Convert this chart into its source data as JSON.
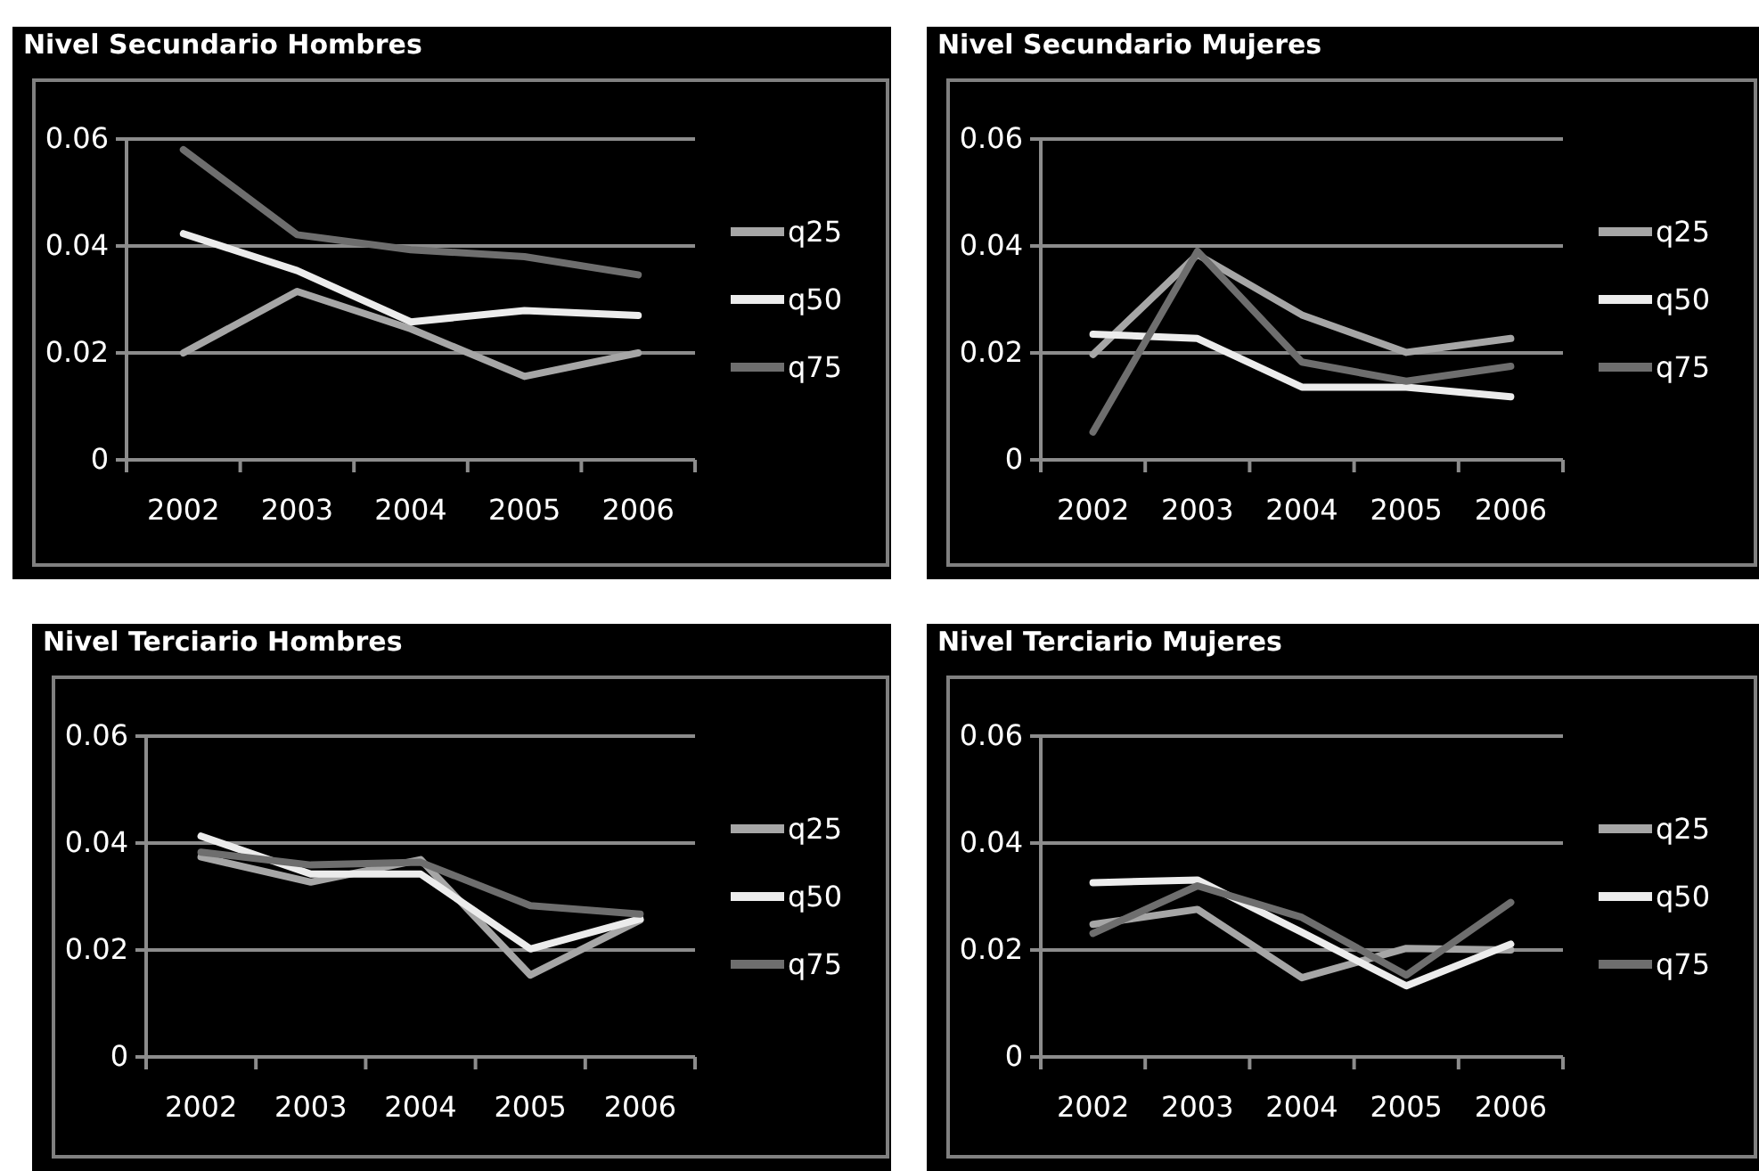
{
  "chart_data": [
    {
      "type": "line",
      "title": "Nivel Secundario Hombres",
      "categories": [
        "2002",
        "2003",
        "2004",
        "2005",
        "2006"
      ],
      "ylim": [
        0,
        0.06
      ],
      "yticks": [
        0,
        0.02,
        0.04,
        0.06
      ],
      "grid": "y",
      "legend": "right",
      "series": [
        {
          "name": "q25",
          "color": "#a6a6a6",
          "values": [
            0.02,
            0.0315,
            0.0245,
            0.0156,
            0.02
          ]
        },
        {
          "name": "q50",
          "color": "#ececec",
          "values": [
            0.0423,
            0.0354,
            0.0258,
            0.0279,
            0.027
          ]
        },
        {
          "name": "q75",
          "color": "#6e6e6e",
          "values": [
            0.058,
            0.0421,
            0.0393,
            0.038,
            0.0346
          ]
        }
      ]
    },
    {
      "type": "line",
      "title": "Nivel Secundario Mujeres",
      "categories": [
        "2002",
        "2003",
        "2004",
        "2005",
        "2006"
      ],
      "ylim": [
        0,
        0.06
      ],
      "yticks": [
        0,
        0.02,
        0.04,
        0.06
      ],
      "grid": "y",
      "legend": "right",
      "series": [
        {
          "name": "q25",
          "color": "#a6a6a6",
          "values": [
            0.0197,
            0.0384,
            0.0271,
            0.0201,
            0.0227
          ]
        },
        {
          "name": "q50",
          "color": "#ececec",
          "values": [
            0.0235,
            0.0227,
            0.0136,
            0.0136,
            0.0118
          ]
        },
        {
          "name": "q75",
          "color": "#6e6e6e",
          "values": [
            0.0052,
            0.039,
            0.0183,
            0.0147,
            0.0175
          ]
        }
      ]
    },
    {
      "type": "line",
      "title": "Nivel Terciario Hombres",
      "categories": [
        "2002",
        "2003",
        "2004",
        "2005",
        "2006"
      ],
      "ylim": [
        0,
        0.06
      ],
      "yticks": [
        0,
        0.02,
        0.04,
        0.06
      ],
      "grid": "y",
      "legend": "right",
      "series": [
        {
          "name": "q25",
          "color": "#a6a6a6",
          "values": [
            0.0374,
            0.0327,
            0.0369,
            0.0153,
            0.0256
          ]
        },
        {
          "name": "q50",
          "color": "#ececec",
          "values": [
            0.0413,
            0.0342,
            0.0342,
            0.0202,
            0.0258
          ]
        },
        {
          "name": "q75",
          "color": "#6e6e6e",
          "values": [
            0.0383,
            0.0359,
            0.0364,
            0.0283,
            0.0267
          ]
        }
      ]
    },
    {
      "type": "line",
      "title": "Nivel Terciario Mujeres",
      "categories": [
        "2002",
        "2003",
        "2004",
        "2005",
        "2006"
      ],
      "ylim": [
        0,
        0.06
      ],
      "yticks": [
        0,
        0.02,
        0.04,
        0.06
      ],
      "grid": "y",
      "legend": "right",
      "series": [
        {
          "name": "q25",
          "color": "#a6a6a6",
          "values": [
            0.0248,
            0.0276,
            0.0148,
            0.0203,
            0.02
          ]
        },
        {
          "name": "q50",
          "color": "#ececec",
          "values": [
            0.0326,
            0.0331,
            0.0233,
            0.0133,
            0.0211
          ]
        },
        {
          "name": "q75",
          "color": "#6e6e6e",
          "values": [
            0.0231,
            0.032,
            0.0261,
            0.0153,
            0.0289
          ]
        }
      ]
    }
  ]
}
